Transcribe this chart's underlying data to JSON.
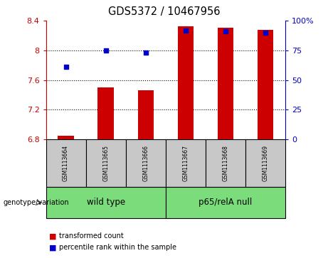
{
  "title": "GDS5372 / 10467956",
  "samples": [
    "GSM1113664",
    "GSM1113665",
    "GSM1113666",
    "GSM1113667",
    "GSM1113668",
    "GSM1113669"
  ],
  "bar_values": [
    6.85,
    7.5,
    7.46,
    8.32,
    8.3,
    8.28
  ],
  "percentile_values_left": [
    7.78,
    8.0,
    7.97,
    8.27,
    8.26,
    8.24
  ],
  "bar_bottom": 6.8,
  "ylim_left": [
    6.8,
    8.4
  ],
  "ylim_right": [
    0,
    100
  ],
  "yticks_left": [
    6.8,
    7.2,
    7.6,
    8.0,
    8.4
  ],
  "yticks_right": [
    0,
    25,
    50,
    75,
    100
  ],
  "ytick_labels_left": [
    "6.8",
    "7.2",
    "7.6",
    "8",
    "8.4"
  ],
  "ytick_labels_right": [
    "0",
    "25",
    "50",
    "75",
    "100%"
  ],
  "bar_color": "#cc0000",
  "dot_color": "#0000cc",
  "groups": [
    {
      "label": "wild type",
      "indices": [
        0,
        1,
        2
      ]
    },
    {
      "label": "p65/relA null",
      "indices": [
        3,
        4,
        5
      ]
    }
  ],
  "genotype_label": "genotype/variation",
  "legend_bar_label": "transformed count",
  "legend_dot_label": "percentile rank within the sample",
  "bar_width": 0.4,
  "figsize": [
    4.61,
    3.63
  ],
  "dpi": 100,
  "tick_color_left": "#cc0000",
  "tick_color_right": "#0000cc",
  "sample_box_color": "#c8c8c8",
  "group_box_color": "#7adc7a"
}
